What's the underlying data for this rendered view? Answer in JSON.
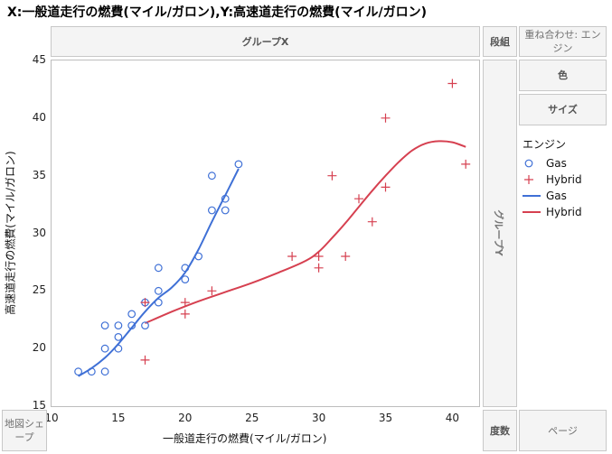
{
  "title": "X:一般道走行の燃費(マイル/ガロン),Y:高速道走行の燃費(マイル/ガロン)",
  "zones": {
    "group_x": "グループX",
    "group_y": "グループY",
    "wrap": "段組",
    "overlay": "重ね合わせ: エンジン",
    "color": "色",
    "size": "サイズ",
    "map_shape": "地図シェープ",
    "freq": "度数",
    "page": "ページ"
  },
  "legend": {
    "title": "エンジン",
    "items": [
      {
        "label": "Gas",
        "marker": "circle",
        "color": "#3f70d6"
      },
      {
        "label": "Hybrid",
        "marker": "plus",
        "color": "#d64050"
      },
      {
        "label": "Gas",
        "marker": "line",
        "color": "#3f70d6"
      },
      {
        "label": "Hybrid",
        "marker": "line",
        "color": "#d64050"
      }
    ]
  },
  "chart_data": {
    "type": "scatter",
    "xlabel": "一般道走行の燃費(マイル/ガロン)",
    "ylabel": "高速道走行の燃費(マイル/ガロン)",
    "xlim": [
      10,
      42
    ],
    "ylim": [
      15,
      45
    ],
    "xticks": [
      10,
      15,
      20,
      25,
      30,
      35,
      40
    ],
    "yticks": [
      15,
      20,
      25,
      30,
      35,
      40,
      45
    ],
    "series": [
      {
        "name": "Gas",
        "marker": "circle",
        "color": "#3f70d6",
        "points": [
          [
            12,
            18
          ],
          [
            13,
            18
          ],
          [
            14,
            18
          ],
          [
            14,
            20
          ],
          [
            14,
            22
          ],
          [
            15,
            20
          ],
          [
            15,
            21
          ],
          [
            15,
            22
          ],
          [
            16,
            22
          ],
          [
            16,
            23
          ],
          [
            17,
            22
          ],
          [
            17,
            24
          ],
          [
            18,
            24
          ],
          [
            18,
            25
          ],
          [
            18,
            27
          ],
          [
            20,
            26
          ],
          [
            20,
            27
          ],
          [
            21,
            28
          ],
          [
            22,
            32
          ],
          [
            22,
            35
          ],
          [
            23,
            32
          ],
          [
            23,
            33
          ],
          [
            24,
            36
          ]
        ],
        "smoother": [
          [
            12,
            17.6
          ],
          [
            13,
            18.3
          ],
          [
            14,
            19.2
          ],
          [
            15,
            20.4
          ],
          [
            16,
            21.8
          ],
          [
            17,
            23.2
          ],
          [
            18,
            24.4
          ],
          [
            19,
            25.3
          ],
          [
            20,
            26.6
          ],
          [
            21,
            28.6
          ],
          [
            22,
            31.0
          ],
          [
            23,
            33.3
          ],
          [
            24,
            35.6
          ]
        ]
      },
      {
        "name": "Hybrid",
        "marker": "plus",
        "color": "#d64050",
        "points": [
          [
            17,
            19
          ],
          [
            17,
            24
          ],
          [
            20,
            23
          ],
          [
            20,
            24
          ],
          [
            22,
            25
          ],
          [
            28,
            28
          ],
          [
            30,
            27
          ],
          [
            30,
            28
          ],
          [
            31,
            35
          ],
          [
            32,
            28
          ],
          [
            33,
            33
          ],
          [
            34,
            31
          ],
          [
            35,
            34
          ],
          [
            35,
            40
          ],
          [
            40,
            43
          ],
          [
            41,
            36
          ]
        ],
        "smoother": [
          [
            17,
            22.2
          ],
          [
            19,
            23.2
          ],
          [
            21,
            24.1
          ],
          [
            23,
            24.9
          ],
          [
            25,
            25.7
          ],
          [
            27,
            26.6
          ],
          [
            29,
            27.6
          ],
          [
            30,
            28.4
          ],
          [
            31,
            29.6
          ],
          [
            32,
            30.9
          ],
          [
            33,
            32.3
          ],
          [
            34,
            33.7
          ],
          [
            35,
            35.0
          ],
          [
            36,
            36.2
          ],
          [
            37,
            37.2
          ],
          [
            38,
            37.8
          ],
          [
            39,
            38.0
          ],
          [
            40,
            37.9
          ],
          [
            41,
            37.5
          ]
        ]
      }
    ]
  }
}
